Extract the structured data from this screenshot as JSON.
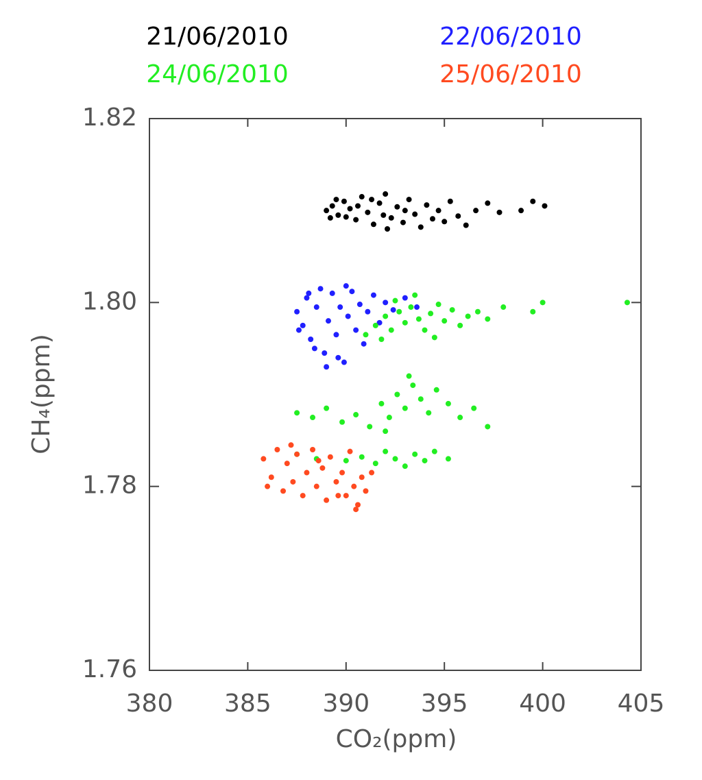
{
  "chart_data": {
    "type": "scatter",
    "x_label": "CO₂(ppm)",
    "y_label": "CH₄(ppm)",
    "xlim": [
      380,
      405
    ],
    "ylim": [
      1.76,
      1.82
    ],
    "xticks": [
      380,
      385,
      390,
      395,
      400,
      405
    ],
    "yticks": [
      1.76,
      1.78,
      {
        "value": 1.8,
        "label": "1.80"
      },
      1.82
    ],
    "series": [
      {
        "name": "21/06/2010",
        "color": "#000000",
        "x": [
          389.0,
          389.3,
          389.6,
          389.9,
          390.2,
          390.5,
          390.8,
          391.1,
          391.4,
          391.7,
          392.0,
          392.3,
          392.6,
          392.9,
          393.2,
          393.5,
          393.8,
          394.1,
          394.4,
          394.7,
          395.0,
          395.3,
          395.7,
          396.1,
          396.6,
          397.2,
          397.8,
          398.9,
          399.5,
          400.1,
          389.5,
          390.0,
          390.6,
          391.3,
          392.1,
          393.0,
          389.2,
          391.9
        ],
        "values": [
          1.81,
          1.8105,
          1.8095,
          1.811,
          1.8102,
          1.809,
          1.8115,
          1.8098,
          1.8085,
          1.8108,
          1.8118,
          1.8092,
          1.8104,
          1.8087,
          1.8112,
          1.8096,
          1.8082,
          1.8106,
          1.8091,
          1.81,
          1.8088,
          1.811,
          1.8094,
          1.8084,
          1.81,
          1.8108,
          1.8098,
          1.81,
          1.811,
          1.8105,
          1.8112,
          1.8093,
          1.8105,
          1.8112,
          1.808,
          1.81,
          1.8092,
          1.8095
        ]
      },
      {
        "name": "22/06/2010",
        "color": "#2020ff",
        "x": [
          387.5,
          387.8,
          388.0,
          388.2,
          388.5,
          388.7,
          388.9,
          389.1,
          389.3,
          389.5,
          389.7,
          389.9,
          390.1,
          390.3,
          390.5,
          390.7,
          390.9,
          391.1,
          391.4,
          391.7,
          392.0,
          392.4,
          393.0,
          393.6,
          388.4,
          389.0,
          389.6,
          387.6,
          388.1,
          390.0
        ],
        "values": [
          1.799,
          1.7975,
          1.8005,
          1.796,
          1.7995,
          1.8015,
          1.7945,
          1.798,
          1.801,
          1.7965,
          1.7995,
          1.7935,
          1.7985,
          1.8012,
          1.797,
          1.7998,
          1.7955,
          1.799,
          1.8008,
          1.7978,
          1.8,
          1.7992,
          1.8005,
          1.7995,
          1.795,
          1.793,
          1.794,
          1.797,
          1.801,
          1.8018
        ]
      },
      {
        "name": "24/06/2010",
        "color": "#22ee22",
        "x": [
          391.0,
          391.5,
          392.0,
          392.3,
          392.7,
          393.0,
          393.3,
          393.7,
          394.0,
          394.3,
          394.7,
          395.0,
          395.4,
          395.8,
          396.2,
          396.7,
          397.2,
          398.0,
          399.5,
          400.0,
          404.3,
          391.8,
          392.5,
          393.5,
          394.5,
          387.5,
          388.3,
          389.0,
          389.8,
          390.5,
          391.2,
          391.8,
          392.2,
          392.6,
          393.0,
          393.4,
          393.8,
          394.2,
          394.6,
          395.2,
          395.8,
          396.5,
          397.2,
          392.0,
          393.2,
          387.5,
          388.5,
          390.0,
          390.8,
          391.5,
          392.0,
          392.5,
          393.0,
          393.5,
          394.0,
          394.5,
          395.2
        ],
        "values": [
          1.7965,
          1.7975,
          1.7985,
          1.797,
          1.799,
          1.7978,
          1.7995,
          1.7982,
          1.797,
          1.7988,
          1.7998,
          1.798,
          1.7992,
          1.7975,
          1.7985,
          1.799,
          1.7982,
          1.7995,
          1.799,
          1.8,
          1.8,
          1.796,
          1.8002,
          1.8008,
          1.7962,
          1.788,
          1.7875,
          1.7885,
          1.787,
          1.7878,
          1.7865,
          1.789,
          1.7875,
          1.79,
          1.7885,
          1.791,
          1.7895,
          1.788,
          1.7905,
          1.789,
          1.7875,
          1.7885,
          1.7865,
          1.786,
          1.792,
          1.7835,
          1.783,
          1.7828,
          1.7832,
          1.7825,
          1.7838,
          1.783,
          1.7822,
          1.7835,
          1.7828,
          1.7838,
          1.783
        ]
      },
      {
        "name": "25/06/2010",
        "color": "#ff4a20",
        "x": [
          385.8,
          386.2,
          386.5,
          386.8,
          387.0,
          387.3,
          387.5,
          387.8,
          388.0,
          388.3,
          388.5,
          388.8,
          389.0,
          389.2,
          389.5,
          389.8,
          390.0,
          390.2,
          390.4,
          390.6,
          390.8,
          391.0,
          391.3,
          390.5,
          389.6,
          388.6,
          387.2,
          386.0
        ],
        "values": [
          1.783,
          1.781,
          1.784,
          1.7795,
          1.7825,
          1.7805,
          1.7835,
          1.779,
          1.7815,
          1.784,
          1.78,
          1.782,
          1.7785,
          1.7832,
          1.7805,
          1.7815,
          1.779,
          1.7838,
          1.78,
          1.778,
          1.781,
          1.7795,
          1.7815,
          1.7775,
          1.779,
          1.7828,
          1.7845,
          1.78
        ]
      }
    ]
  }
}
